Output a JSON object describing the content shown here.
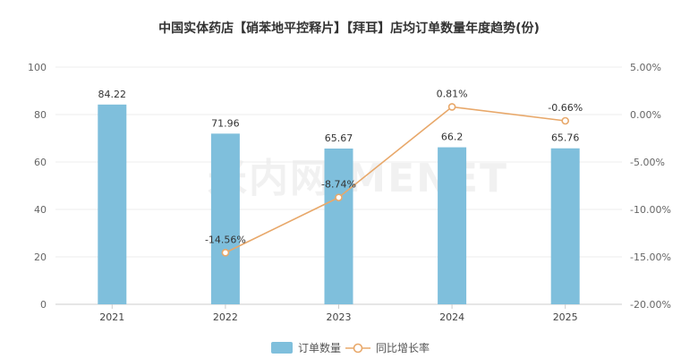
{
  "chart_data": {
    "type": "bar",
    "title": "中国实体药店【硝苯地平控释片】【拜耳】店均订单数量年度趋势(份)",
    "categories": [
      "2021",
      "2022",
      "2023",
      "2024",
      "2025"
    ],
    "series": [
      {
        "name": "订单数量",
        "type": "bar",
        "axis": "left",
        "color": "#7fbfdc",
        "values": [
          84.22,
          71.96,
          65.67,
          66.2,
          65.76
        ],
        "labels": [
          "84.22",
          "71.96",
          "65.67",
          "66.2",
          "65.76"
        ]
      },
      {
        "name": "同比增长率",
        "type": "line",
        "axis": "right",
        "color": "#e8a86a",
        "values": [
          null,
          -14.56,
          -8.74,
          0.81,
          -0.66
        ],
        "labels": [
          "",
          "-14.56%",
          "-8.74%",
          "0.81%",
          "-0.66%"
        ]
      }
    ],
    "y_left": {
      "min": 0,
      "max": 100,
      "ticks": [
        0,
        20,
        40,
        60,
        80,
        100
      ],
      "tick_labels": [
        "0",
        "20",
        "40",
        "60",
        "80",
        "100"
      ]
    },
    "y_right": {
      "min": -20,
      "max": 5,
      "ticks": [
        -20,
        -15,
        -10,
        -5,
        0,
        5
      ],
      "tick_labels": [
        "-20.00%",
        "-15.00%",
        "-10.00%",
        "-5.00%",
        "0.00%",
        "5.00%"
      ]
    },
    "grid": true,
    "legend": "bottom-center"
  },
  "watermark": "米内网 MENET"
}
